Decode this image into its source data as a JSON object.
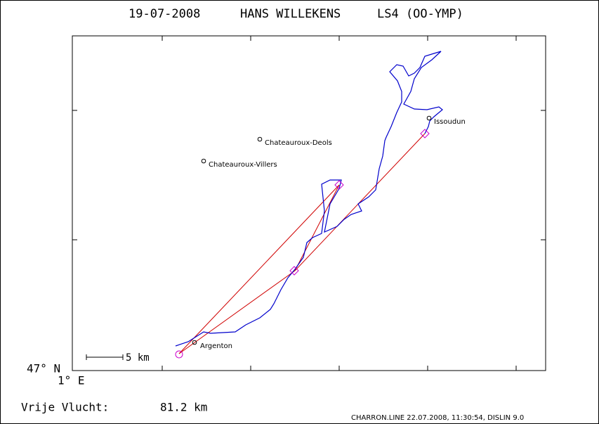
{
  "header": {
    "date": "19-07-2008",
    "pilot": "HANS WILLEKENS",
    "glider": "LS4 (OO-YMP)"
  },
  "places": [
    {
      "label": "Chateauroux-Deols"
    },
    {
      "label": "Chateauroux-Villers"
    },
    {
      "label": "Issoudun"
    },
    {
      "label": "Argenton"
    }
  ],
  "scale": {
    "label": "5 km"
  },
  "axes": {
    "lat_label": "47° N",
    "lon_label": "1° E"
  },
  "distance": {
    "label": "Vrije Vlucht:",
    "value": "81.2 km"
  },
  "footer": "CHARRON.LINE 22.07.2008, 11:30:54, DISLIN 9.0"
}
